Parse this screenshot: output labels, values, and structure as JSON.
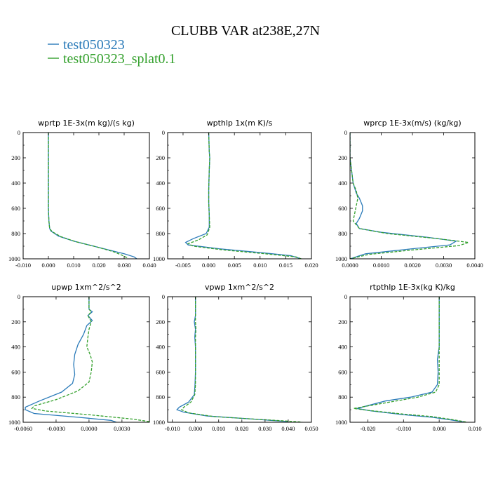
{
  "figure_title": "CLUBB VAR at238E,27N",
  "legend": [
    {
      "label": "test050323",
      "color": "#2b7bb9"
    },
    {
      "label": "test050323_splat0.1",
      "color": "#33a02c"
    }
  ],
  "chart_data": [
    {
      "type": "line",
      "title": "wprtp  1E-3x(m kg)/(s kg)",
      "xlim": [
        -0.01,
        0.04
      ],
      "ylim": [
        1000,
        0
      ],
      "xticks": [
        -0.01,
        0.0,
        0.01,
        0.02,
        0.03,
        0.04
      ],
      "xtick_labels": [
        "-0.010",
        "0.000",
        "0.010",
        "0.020",
        "0.030",
        "0.040"
      ],
      "yticks": [
        0,
        200,
        400,
        600,
        800,
        1000
      ],
      "ytick_labels": [
        "0",
        "200",
        "400",
        "600",
        "800",
        "1000"
      ],
      "series": [
        {
          "name": "test050323",
          "points": [
            [
              0.0,
              0
            ],
            [
              0.0,
              200
            ],
            [
              0.0,
              400
            ],
            [
              0.0,
              600
            ],
            [
              0.0002,
              700
            ],
            [
              0.0005,
              760
            ],
            [
              0.001,
              780
            ],
            [
              0.004,
              820
            ],
            [
              0.01,
              860
            ],
            [
              0.018,
              900
            ],
            [
              0.026,
              940
            ],
            [
              0.03,
              960
            ],
            [
              0.034,
              985
            ],
            [
              0.035,
              1000
            ]
          ]
        },
        {
          "name": "test050323_splat0.1",
          "points": [
            [
              0.0,
              0
            ],
            [
              0.0,
              200
            ],
            [
              0.0,
              400
            ],
            [
              0.0,
              600
            ],
            [
              0.0002,
              700
            ],
            [
              0.0005,
              760
            ],
            [
              0.0015,
              785
            ],
            [
              0.005,
              825
            ],
            [
              0.011,
              865
            ],
            [
              0.019,
              905
            ],
            [
              0.026,
              945
            ],
            [
              0.029,
              970
            ],
            [
              0.031,
              990
            ],
            [
              0.031,
              1000
            ]
          ]
        }
      ]
    },
    {
      "type": "line",
      "title": "wpthlp  1x(m K)/s",
      "xlim": [
        -0.008,
        0.02
      ],
      "ylim": [
        1000,
        0
      ],
      "xticks": [
        -0.005,
        0.0,
        0.005,
        0.01,
        0.015,
        0.02
      ],
      "xtick_labels": [
        "-0.005",
        "0.000",
        "0.005",
        "0.010",
        "0.015",
        "0.020"
      ],
      "yticks": [
        0,
        200,
        400,
        600,
        800,
        1000
      ],
      "ytick_labels": [
        "0",
        "200",
        "400",
        "600",
        "800",
        "1000"
      ],
      "series": [
        {
          "name": "test050323",
          "points": [
            [
              0.0,
              0
            ],
            [
              0.0001,
              150
            ],
            [
              0.0002,
              200
            ],
            [
              0.0001,
              300
            ],
            [
              0.0,
              450
            ],
            [
              0.0,
              550
            ],
            [
              0.0001,
              650
            ],
            [
              0.0001,
              750
            ],
            [
              -0.0005,
              800
            ],
            [
              -0.003,
              840
            ],
            [
              -0.0045,
              870
            ],
            [
              -0.004,
              890
            ],
            [
              0.002,
              920
            ],
            [
              0.01,
              950
            ],
            [
              0.016,
              975
            ],
            [
              0.018,
              1000
            ]
          ]
        },
        {
          "name": "test050323_splat0.1",
          "points": [
            [
              0.0,
              0
            ],
            [
              0.0001,
              150
            ],
            [
              0.0002,
              200
            ],
            [
              0.0001,
              300
            ],
            [
              0.0,
              450
            ],
            [
              0.0,
              550
            ],
            [
              0.0001,
              650
            ],
            [
              0.0002,
              750
            ],
            [
              -0.0003,
              810
            ],
            [
              -0.002,
              850
            ],
            [
              -0.004,
              880
            ],
            [
              -0.003,
              900
            ],
            [
              0.003,
              930
            ],
            [
              0.011,
              960
            ],
            [
              0.017,
              985
            ],
            [
              0.018,
              1000
            ]
          ]
        }
      ]
    },
    {
      "type": "line",
      "title": "wprcp  1E-3x(m/s) (kg/kg)",
      "xlim": [
        0.0,
        0.004
      ],
      "ylim": [
        1000,
        0
      ],
      "xticks": [
        0.0,
        0.001,
        0.002,
        0.003,
        0.004
      ],
      "xtick_labels": [
        "0.0000",
        "0.0010",
        "0.0020",
        "0.0030",
        "0.0040"
      ],
      "yticks": [
        0,
        200,
        400,
        600,
        800,
        1000
      ],
      "ytick_labels": [
        "0",
        "200",
        "400",
        "600",
        "800",
        "1000"
      ],
      "series": [
        {
          "name": "test050323",
          "points": [
            [
              0.0,
              0
            ],
            [
              0.0,
              200
            ],
            [
              5e-05,
              300
            ],
            [
              0.0001,
              400
            ],
            [
              0.0002,
              480
            ],
            [
              0.0003,
              520
            ],
            [
              0.0004,
              580
            ],
            [
              0.0004,
              620
            ],
            [
              0.0003,
              680
            ],
            [
              0.0002,
              720
            ],
            [
              0.0003,
              760
            ],
            [
              0.001,
              790
            ],
            [
              0.0025,
              830
            ],
            [
              0.0034,
              860
            ],
            [
              0.0032,
              890
            ],
            [
              0.002,
              920
            ],
            [
              0.0005,
              960
            ],
            [
              0.0,
              1000
            ]
          ]
        },
        {
          "name": "test050323_splat0.1",
          "points": [
            [
              0.0,
              0
            ],
            [
              0.0,
              200
            ],
            [
              5e-05,
              300
            ],
            [
              0.0001,
              400
            ],
            [
              0.0002,
              460
            ],
            [
              0.00025,
              520
            ],
            [
              0.0002,
              580
            ],
            [
              0.00015,
              640
            ],
            [
              0.0001,
              700
            ],
            [
              0.0003,
              760
            ],
            [
              0.0012,
              800
            ],
            [
              0.0028,
              840
            ],
            [
              0.0038,
              870
            ],
            [
              0.0035,
              895
            ],
            [
              0.002,
              930
            ],
            [
              0.0006,
              965
            ],
            [
              0.0,
              1000
            ]
          ]
        }
      ]
    },
    {
      "type": "line",
      "title": "upwp  1xm^2/s^2",
      "xlim": [
        -0.006,
        0.0055
      ],
      "ylim": [
        1000,
        0
      ],
      "xticks": [
        -0.006,
        -0.003,
        0.0,
        0.003
      ],
      "xtick_labels": [
        "-0.0060",
        "-0.0030",
        "0.0000",
        "0.0030"
      ],
      "yticks": [
        0,
        200,
        400,
        600,
        800,
        1000
      ],
      "ytick_labels": [
        "0",
        "200",
        "400",
        "600",
        "800",
        "1000"
      ],
      "series": [
        {
          "name": "test050323",
          "points": [
            [
              0.0,
              0
            ],
            [
              0.0,
              100
            ],
            [
              0.0003,
              120
            ],
            [
              -0.0001,
              150
            ],
            [
              0.0003,
              190
            ],
            [
              -0.0002,
              230
            ],
            [
              -0.0005,
              300
            ],
            [
              -0.001,
              380
            ],
            [
              -0.0013,
              460
            ],
            [
              -0.0014,
              540
            ],
            [
              -0.0013,
              620
            ],
            [
              -0.0015,
              690
            ],
            [
              -0.0025,
              760
            ],
            [
              -0.0045,
              830
            ],
            [
              -0.0058,
              880
            ],
            [
              -0.0058,
              900
            ],
            [
              -0.005,
              930
            ],
            [
              -0.001,
              960
            ],
            [
              0.002,
              985
            ],
            [
              0.0025,
              1000
            ]
          ]
        },
        {
          "name": "test050323_splat0.1",
          "points": [
            [
              0.0,
              0
            ],
            [
              0.0,
              100
            ],
            [
              0.0002,
              120
            ],
            [
              -0.0001,
              150
            ],
            [
              0.0002,
              200
            ],
            [
              0.0,
              260
            ],
            [
              -0.0001,
              320
            ],
            [
              -0.0002,
              400
            ],
            [
              0.0001,
              460
            ],
            [
              0.0003,
              520
            ],
            [
              0.0002,
              600
            ],
            [
              0.0,
              680
            ],
            [
              -0.001,
              750
            ],
            [
              -0.003,
              820
            ],
            [
              -0.005,
              870
            ],
            [
              -0.0052,
              890
            ],
            [
              -0.004,
              910
            ],
            [
              0.0,
              940
            ],
            [
              0.004,
              975
            ],
            [
              0.0055,
              995
            ]
          ]
        }
      ]
    },
    {
      "type": "line",
      "title": "vpwp  1xm^2/s^2",
      "xlim": [
        -0.012,
        0.05
      ],
      "ylim": [
        1000,
        0
      ],
      "xticks": [
        -0.01,
        0.0,
        0.01,
        0.02,
        0.03,
        0.04,
        0.05
      ],
      "xtick_labels": [
        "-0.010",
        "0.000",
        "0.010",
        "0.020",
        "0.030",
        "0.040",
        "0.050"
      ],
      "yticks": [
        0,
        200,
        400,
        600,
        800,
        1000
      ],
      "ytick_labels": [
        "0",
        "200",
        "400",
        "600",
        "800",
        "1000"
      ],
      "series": [
        {
          "name": "test050323",
          "points": [
            [
              0.0,
              0
            ],
            [
              0.0,
              150
            ],
            [
              -0.0005,
              200
            ],
            [
              0.0,
              260
            ],
            [
              -0.0003,
              320
            ],
            [
              0.0,
              400
            ],
            [
              0.0,
              500
            ],
            [
              0.0,
              600
            ],
            [
              -0.0002,
              700
            ],
            [
              -0.0005,
              780
            ],
            [
              -0.003,
              840
            ],
            [
              -0.007,
              880
            ],
            [
              -0.008,
              900
            ],
            [
              -0.005,
              920
            ],
            [
              0.005,
              950
            ],
            [
              0.025,
              975
            ],
            [
              0.04,
              995
            ]
          ]
        },
        {
          "name": "test050323_splat0.1",
          "points": [
            [
              0.0,
              0
            ],
            [
              0.0,
              150
            ],
            [
              0.0,
              200
            ],
            [
              0.0002,
              260
            ],
            [
              0.0,
              320
            ],
            [
              0.0,
              400
            ],
            [
              0.0,
              500
            ],
            [
              0.0,
              600
            ],
            [
              0.0,
              700
            ],
            [
              -0.0003,
              780
            ],
            [
              -0.002,
              840
            ],
            [
              -0.005,
              880
            ],
            [
              -0.006,
              900
            ],
            [
              -0.003,
              925
            ],
            [
              0.008,
              955
            ],
            [
              0.03,
              980
            ],
            [
              0.046,
              998
            ]
          ]
        }
      ]
    },
    {
      "type": "line",
      "title": "rtpthlp  1E-3x(kg K)/kg",
      "xlim": [
        -0.025,
        0.01
      ],
      "ylim": [
        1000,
        0
      ],
      "xticks": [
        -0.02,
        -0.01,
        0.0,
        0.01
      ],
      "xtick_labels": [
        "-0.020",
        "-0.010",
        "0.000",
        "0.010"
      ],
      "yticks": [
        0,
        200,
        400,
        600,
        800,
        1000
      ],
      "ytick_labels": [
        "0",
        "200",
        "400",
        "600",
        "800",
        "1000"
      ],
      "series": [
        {
          "name": "test050323",
          "points": [
            [
              0.0,
              0
            ],
            [
              0.0,
              200
            ],
            [
              0.0,
              400
            ],
            [
              -0.0005,
              500
            ],
            [
              -0.0003,
              600
            ],
            [
              -0.0005,
              700
            ],
            [
              -0.002,
              760
            ],
            [
              -0.008,
              800
            ],
            [
              -0.015,
              830
            ],
            [
              -0.019,
              860
            ],
            [
              -0.023,
              890
            ],
            [
              -0.019,
              910
            ],
            [
              -0.01,
              940
            ],
            [
              -0.002,
              960
            ],
            [
              0.003,
              980
            ],
            [
              0.0075,
              1000
            ]
          ]
        },
        {
          "name": "test050323_splat0.1",
          "points": [
            [
              0.0,
              0
            ],
            [
              0.0,
              200
            ],
            [
              0.0,
              400
            ],
            [
              0.0,
              500
            ],
            [
              0.0,
              600
            ],
            [
              0.0,
              700
            ],
            [
              -0.001,
              760
            ],
            [
              -0.006,
              800
            ],
            [
              -0.012,
              830
            ],
            [
              -0.018,
              860
            ],
            [
              -0.024,
              890
            ],
            [
              -0.02,
              905
            ],
            [
              -0.01,
              935
            ],
            [
              -0.002,
              955
            ],
            [
              0.004,
              980
            ],
            [
              0.0075,
              998
            ]
          ]
        }
      ]
    }
  ]
}
